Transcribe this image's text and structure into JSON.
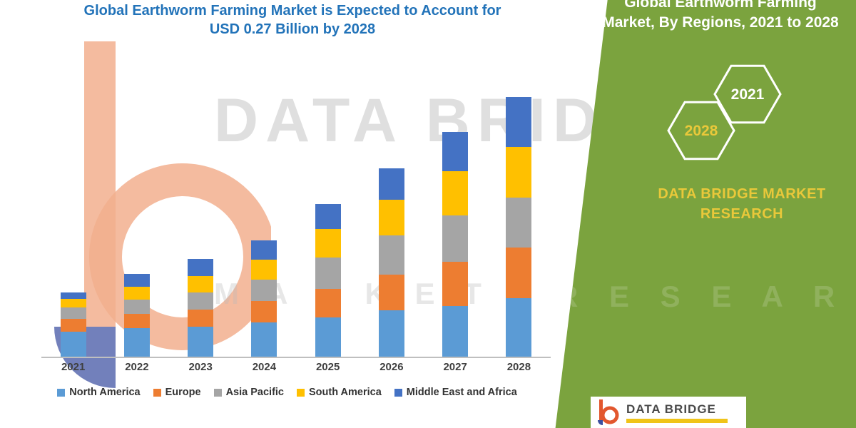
{
  "chart": {
    "title_line1": "Global Earthworm Farming Market is Expected to Account for",
    "title_line2": "USD 0.27 Billion by 2028"
  },
  "chart_data": {
    "type": "bar",
    "subtype": "stacked",
    "title": "Global Earthworm Farming Market is Expected to Account for USD 0.27 Billion by 2028",
    "unit": "USD Billion",
    "categories": [
      "2021",
      "2022",
      "2023",
      "2024",
      "2025",
      "2026",
      "2027",
      "2028"
    ],
    "series": [
      {
        "name": "North America",
        "color": "#5B9BD5",
        "values": [
          0.026,
          0.03,
          0.031,
          0.036,
          0.041,
          0.048,
          0.053,
          0.061
        ]
      },
      {
        "name": "Europe",
        "color": "#ED7D31",
        "values": [
          0.013,
          0.015,
          0.018,
          0.022,
          0.03,
          0.037,
          0.046,
          0.053
        ]
      },
      {
        "name": "Asia Pacific",
        "color": "#A5A5A5",
        "values": [
          0.012,
          0.015,
          0.018,
          0.022,
          0.033,
          0.041,
          0.048,
          0.052
        ]
      },
      {
        "name": "South America",
        "color": "#FFC000",
        "values": [
          0.009,
          0.013,
          0.017,
          0.021,
          0.03,
          0.037,
          0.046,
          0.053
        ]
      },
      {
        "name": "Middle East and Africa",
        "color": "#4472C4",
        "values": [
          0.007,
          0.013,
          0.018,
          0.02,
          0.026,
          0.033,
          0.041,
          0.052
        ]
      }
    ],
    "ylim": [
      0,
      0.28
    ],
    "grid": false,
    "legend_position": "bottom",
    "total_2028_label": "USD 0.27 Billion"
  },
  "watermark": {
    "line1": "DATA BRIDGE",
    "line2": "M A R K E T"
  },
  "right_panel": {
    "title_line1": "Global Earthworm Farming",
    "title_line2": "Market, By Regions, 2021 to 2028",
    "hexagon_labels": [
      "2028",
      "2021"
    ],
    "brand_line1": "DATA BRIDGE MARKET",
    "brand_line2": "RESEARCH",
    "watermark": "R E S E A R C H"
  },
  "footer": {
    "brand": "DATA BRIDGE"
  },
  "colors": {
    "panel_green": "#7BA33E",
    "accent_yellow": "#E9C83A",
    "title_blue": "#2273B9"
  }
}
